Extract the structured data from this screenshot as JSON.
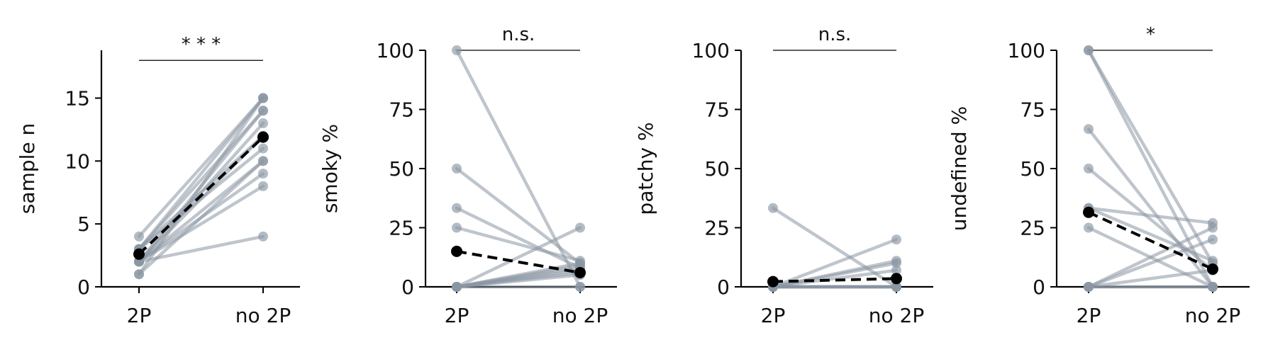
{
  "colors": {
    "individual": "#8a96a3",
    "mean": "#000000",
    "axis": "#000000"
  },
  "chart_data": [
    {
      "type": "line",
      "ylabel": "sample n",
      "categories": [
        "2P",
        "no 2P"
      ],
      "yticks": [
        0,
        5,
        10,
        15
      ],
      "ylim": [
        0,
        18.8
      ],
      "significance": "* * *",
      "sig_y": 18,
      "series": [
        {
          "values": [
            4,
            15
          ]
        },
        {
          "values": [
            3,
            15
          ]
        },
        {
          "values": [
            3,
            14
          ]
        },
        {
          "values": [
            2,
            14
          ]
        },
        {
          "values": [
            2,
            13
          ]
        },
        {
          "values": [
            3,
            12
          ]
        },
        {
          "values": [
            2,
            12
          ]
        },
        {
          "values": [
            3,
            11
          ]
        },
        {
          "values": [
            2,
            10
          ]
        },
        {
          "values": [
            1,
            10
          ]
        },
        {
          "values": [
            2,
            9
          ]
        },
        {
          "values": [
            2,
            8
          ]
        },
        {
          "values": [
            2,
            4
          ]
        },
        {
          "values": [
            1,
            15
          ]
        }
      ],
      "mean": [
        2.6,
        11.9
      ]
    },
    {
      "type": "line",
      "ylabel": "smoky %",
      "categories": [
        "2P",
        "no 2P"
      ],
      "yticks": [
        0,
        25,
        50,
        75,
        100
      ],
      "ylim": [
        0,
        100
      ],
      "significance": "n.s.",
      "sig_y": 100,
      "series": [
        {
          "values": [
            100,
            0
          ]
        },
        {
          "values": [
            50,
            10
          ]
        },
        {
          "values": [
            33.3,
            8
          ]
        },
        {
          "values": [
            25,
            11
          ]
        },
        {
          "values": [
            0,
            25
          ]
        },
        {
          "values": [
            0,
            9
          ]
        },
        {
          "values": [
            0,
            7
          ]
        },
        {
          "values": [
            0,
            6
          ]
        },
        {
          "values": [
            0,
            5
          ]
        },
        {
          "values": [
            0,
            0
          ]
        },
        {
          "values": [
            0,
            8
          ]
        },
        {
          "values": [
            0,
            10
          ]
        }
      ],
      "mean": [
        15,
        6
      ]
    },
    {
      "type": "line",
      "ylabel": "patchy %",
      "categories": [
        "2P",
        "no 2P"
      ],
      "yticks": [
        0,
        25,
        50,
        75,
        100
      ],
      "ylim": [
        0,
        100
      ],
      "significance": "n.s.",
      "sig_y": 100,
      "series": [
        {
          "values": [
            33.3,
            0
          ]
        },
        {
          "values": [
            0,
            20
          ]
        },
        {
          "values": [
            0,
            11
          ]
        },
        {
          "values": [
            0,
            10
          ]
        },
        {
          "values": [
            0,
            7
          ]
        },
        {
          "values": [
            0,
            0
          ]
        },
        {
          "values": [
            0,
            0
          ]
        },
        {
          "values": [
            0,
            0
          ]
        },
        {
          "values": [
            0,
            0
          ]
        },
        {
          "values": [
            0,
            0
          ]
        },
        {
          "values": [
            0,
            0
          ]
        }
      ],
      "mean": [
        2.2,
        3.5
      ]
    },
    {
      "type": "line",
      "ylabel": "undefined %",
      "categories": [
        "2P",
        "no 2P"
      ],
      "yticks": [
        0,
        25,
        50,
        75,
        100
      ],
      "ylim": [
        0,
        100
      ],
      "significance": "*",
      "sig_y": 100,
      "series": [
        {
          "values": [
            100,
            0
          ]
        },
        {
          "values": [
            100,
            10
          ]
        },
        {
          "values": [
            66.7,
            0
          ]
        },
        {
          "values": [
            50,
            7
          ]
        },
        {
          "values": [
            33.3,
            27
          ]
        },
        {
          "values": [
            33.3,
            11
          ]
        },
        {
          "values": [
            25,
            0
          ]
        },
        {
          "values": [
            0,
            25
          ]
        },
        {
          "values": [
            0,
            20
          ]
        },
        {
          "values": [
            0,
            0
          ]
        },
        {
          "values": [
            0,
            7
          ]
        },
        {
          "values": [
            0,
            0
          ]
        }
      ],
      "mean": [
        31.5,
        7.5
      ]
    }
  ]
}
